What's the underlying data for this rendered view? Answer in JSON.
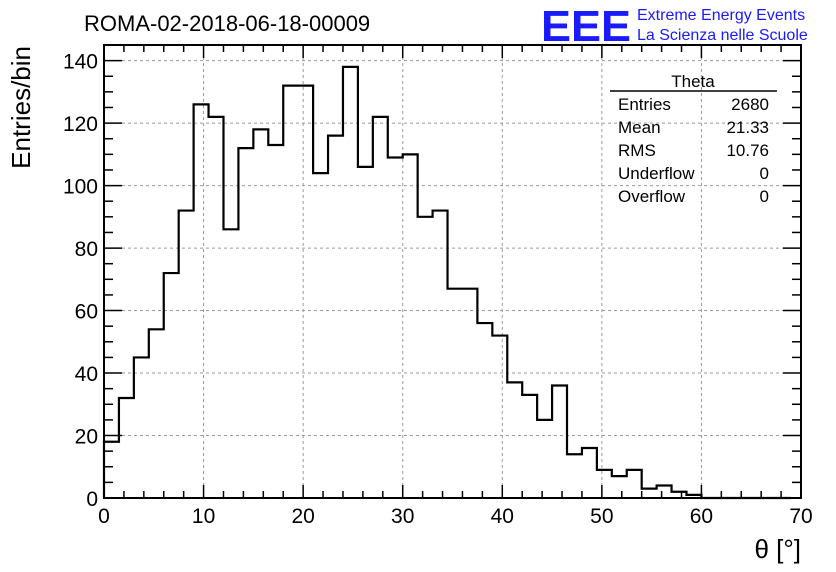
{
  "chart_data": {
    "type": "histogram",
    "title": "ROMA-02-2018-06-18-00009",
    "xlabel": "θ [°]",
    "ylabel": "Entries/bin",
    "xlim": [
      0,
      70
    ],
    "ylim": [
      0,
      145
    ],
    "x_ticks": [
      0,
      10,
      20,
      30,
      40,
      50,
      60,
      70
    ],
    "y_ticks": [
      0,
      20,
      40,
      60,
      80,
      100,
      120,
      140
    ],
    "grid": true,
    "bin_width": 1.5,
    "bin_edges_start": 0,
    "values": [
      18,
      32,
      45,
      54,
      72,
      92,
      126,
      122,
      86,
      112,
      118,
      113,
      132,
      132,
      104,
      116,
      138,
      106,
      122,
      109,
      110,
      90,
      92,
      67,
      67,
      56,
      52,
      37,
      33,
      25,
      36,
      14,
      16,
      9,
      7,
      9,
      3,
      4,
      2,
      1,
      0,
      0,
      0,
      0,
      0,
      0
    ]
  },
  "stats_box": {
    "title": "Theta",
    "rows": [
      {
        "label": "Entries",
        "value": "2680"
      },
      {
        "label": "Mean",
        "value": "21.33"
      },
      {
        "label": "RMS",
        "value": "10.76"
      },
      {
        "label": "Underflow",
        "value": "0"
      },
      {
        "label": "Overflow",
        "value": "0"
      }
    ]
  },
  "logo": {
    "mark": "EEE",
    "line1": "Extreme Energy Events",
    "line2": "La Scienza nelle Scuole",
    "color": "#1a1aff"
  },
  "colors": {
    "histogram_line": "#000000",
    "grid": "#9a9a9a",
    "frame": "#000000"
  }
}
